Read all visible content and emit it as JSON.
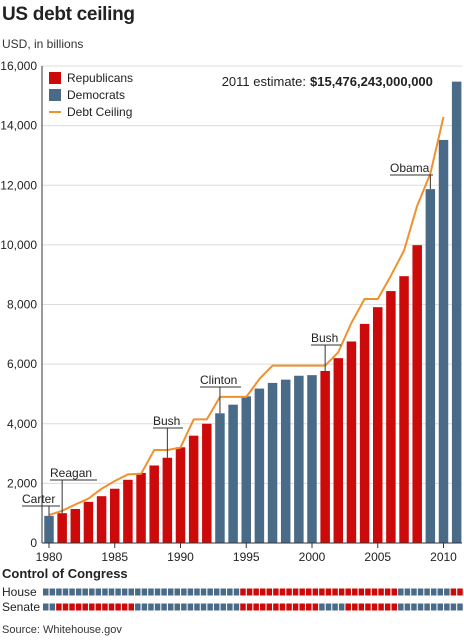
{
  "title": "US debt ceiling",
  "subtitle": "USD, in billions",
  "source": "Source: Whitehouse.gov",
  "estimate_label": "2011 estimate:",
  "estimate_value": "$15,476,243,000,000",
  "colors": {
    "republican": "#cc0a0a",
    "democrat": "#4a6b88",
    "ceiling": "#f0912f"
  },
  "chart_data": {
    "type": "bar",
    "title": "US debt ceiling",
    "ylabel": "USD, in billions",
    "xlim": [
      1980,
      2011
    ],
    "ylim": [
      0,
      16000
    ],
    "y_ticks": [
      0,
      2000,
      4000,
      6000,
      8000,
      10000,
      12000,
      14000,
      16000
    ],
    "y_tick_labels": [
      "0",
      "2,000",
      "4,000",
      "6,000",
      "8,000",
      "10,000",
      "12,000",
      "14,000",
      "16,000"
    ],
    "x_ticks": [
      1980,
      1985,
      1990,
      1995,
      2000,
      2005,
      2010
    ],
    "x_tick_labels": [
      "1980",
      "1985",
      "1990",
      "1995",
      "2000",
      "2005",
      "2010"
    ],
    "years": [
      1980,
      1981,
      1982,
      1983,
      1984,
      1985,
      1986,
      1987,
      1988,
      1989,
      1990,
      1991,
      1992,
      1993,
      1994,
      1995,
      1996,
      1997,
      1998,
      1999,
      2000,
      2001,
      2002,
      2003,
      2004,
      2005,
      2006,
      2007,
      2008,
      2009,
      2010,
      2011
    ],
    "debt": [
      910,
      1000,
      1140,
      1380,
      1570,
      1820,
      2120,
      2350,
      2600,
      2860,
      3210,
      3600,
      4000,
      4350,
      4640,
      4920,
      5180,
      5370,
      5480,
      5610,
      5630,
      5770,
      6200,
      6760,
      7350,
      7910,
      8450,
      8950,
      9990,
      11870,
      13520,
      15476
    ],
    "president_party": [
      "D",
      "R",
      "R",
      "R",
      "R",
      "R",
      "R",
      "R",
      "R",
      "R",
      "R",
      "R",
      "R",
      "D",
      "D",
      "D",
      "D",
      "D",
      "D",
      "D",
      "D",
      "R",
      "R",
      "R",
      "R",
      "R",
      "R",
      "R",
      "R",
      "D",
      "D",
      "D"
    ],
    "legend": [
      {
        "label": "Republicans",
        "color": "#cc0a0a",
        "kind": "swatch"
      },
      {
        "label": "Democrats",
        "color": "#4a6b88",
        "kind": "swatch"
      },
      {
        "label": "Debt Ceiling",
        "color": "#f0912f",
        "kind": "line"
      }
    ],
    "legend_position": "top-left",
    "debt_ceiling": {
      "name": "Debt Ceiling",
      "points": [
        [
          1980,
          935
        ],
        [
          1981,
          1080
        ],
        [
          1982,
          1290
        ],
        [
          1983,
          1490
        ],
        [
          1984,
          1820
        ],
        [
          1985,
          2080
        ],
        [
          1986,
          2300
        ],
        [
          1987,
          2320
        ],
        [
          1988,
          3120
        ],
        [
          1989,
          3120
        ],
        [
          1990,
          3200
        ],
        [
          1991,
          4145
        ],
        [
          1992,
          4145
        ],
        [
          1993,
          4900
        ],
        [
          1994,
          4900
        ],
        [
          1995,
          4900
        ],
        [
          1996,
          5500
        ],
        [
          1997,
          5950
        ],
        [
          1998,
          5950
        ],
        [
          1999,
          5950
        ],
        [
          2000,
          5950
        ],
        [
          2001,
          5950
        ],
        [
          2002,
          6400
        ],
        [
          2003,
          7384
        ],
        [
          2004,
          8184
        ],
        [
          2005,
          8184
        ],
        [
          2006,
          8965
        ],
        [
          2007,
          9815
        ],
        [
          2008,
          11315
        ],
        [
          2009,
          12394
        ],
        [
          2010,
          14294
        ]
      ]
    },
    "annotations": [
      {
        "label": "Carter",
        "year": 1980
      },
      {
        "label": "Reagan",
        "year": 1981
      },
      {
        "label": "Bush",
        "year": 1989
      },
      {
        "label": "Clinton",
        "year": 1993
      },
      {
        "label": "Bush",
        "year": 2001
      },
      {
        "label": "Obama",
        "year": 2009
      }
    ]
  },
  "congress": {
    "heading": "Control of Congress",
    "rows": [
      {
        "label": "House",
        "control": [
          "D",
          "D",
          "D",
          "D",
          "D",
          "D",
          "D",
          "D",
          "D",
          "D",
          "D",
          "D",
          "D",
          "D",
          "D",
          "R",
          "R",
          "R",
          "R",
          "R",
          "R",
          "R",
          "R",
          "R",
          "R",
          "R",
          "R",
          "D",
          "D",
          "D",
          "D",
          "R"
        ]
      },
      {
        "label": "Senate",
        "control": [
          "D",
          "R",
          "R",
          "R",
          "R",
          "R",
          "R",
          "D",
          "D",
          "D",
          "D",
          "D",
          "D",
          "D",
          "D",
          "R",
          "R",
          "R",
          "R",
          "R",
          "R",
          "D",
          "D",
          "R",
          "R",
          "R",
          "R",
          "D",
          "D",
          "D",
          "D",
          "D"
        ]
      }
    ]
  }
}
